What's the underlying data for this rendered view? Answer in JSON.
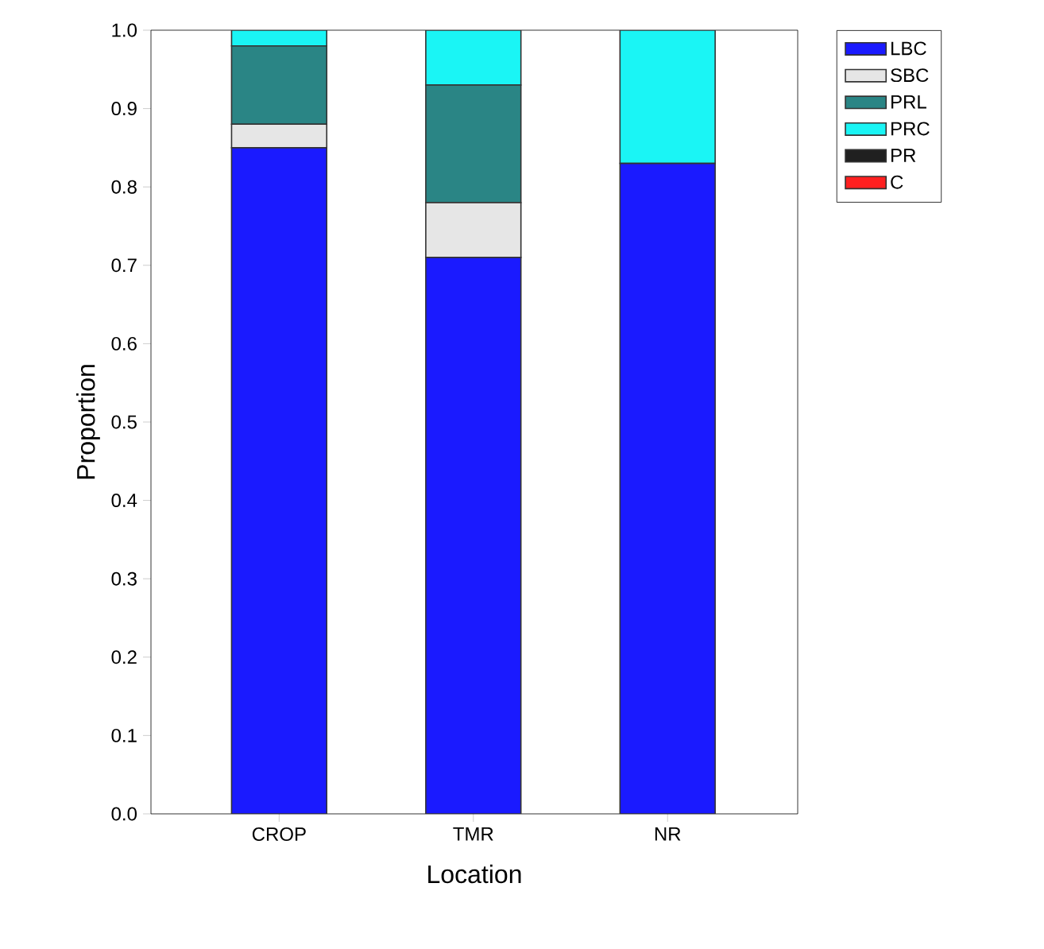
{
  "chart_data": {
    "type": "bar",
    "stacked": true,
    "xlabel": "Location",
    "ylabel": "Proportion",
    "categories": [
      "CROP",
      "TMR",
      "NR"
    ],
    "series": [
      {
        "name": "LBC",
        "color": "#1a1aff",
        "values": [
          0.85,
          0.71,
          0.83
        ]
      },
      {
        "name": "SBC",
        "color": "#e6e6e6",
        "values": [
          0.03,
          0.07,
          0
        ]
      },
      {
        "name": "PRL",
        "color": "#2a8585",
        "values": [
          0.1,
          0.15,
          0
        ]
      },
      {
        "name": "PRC",
        "color": "#1af5f5",
        "values": [
          0.02,
          0.07,
          0.17
        ]
      },
      {
        "name": "PR",
        "color": "#202020",
        "values": [
          0,
          0,
          0
        ]
      },
      {
        "name": "C",
        "color": "#ff2020",
        "values": [
          0,
          0,
          0
        ]
      }
    ],
    "ylim": [
      0,
      1
    ],
    "yticks": [
      {
        "value": 0,
        "label": "0.0"
      },
      0.1,
      0.2,
      0.3,
      0.4,
      0.5,
      0.6,
      0.7,
      0.8,
      0.9,
      {
        "value": 1,
        "label": "1.0"
      }
    ],
    "legend": "top right",
    "grid": false
  }
}
